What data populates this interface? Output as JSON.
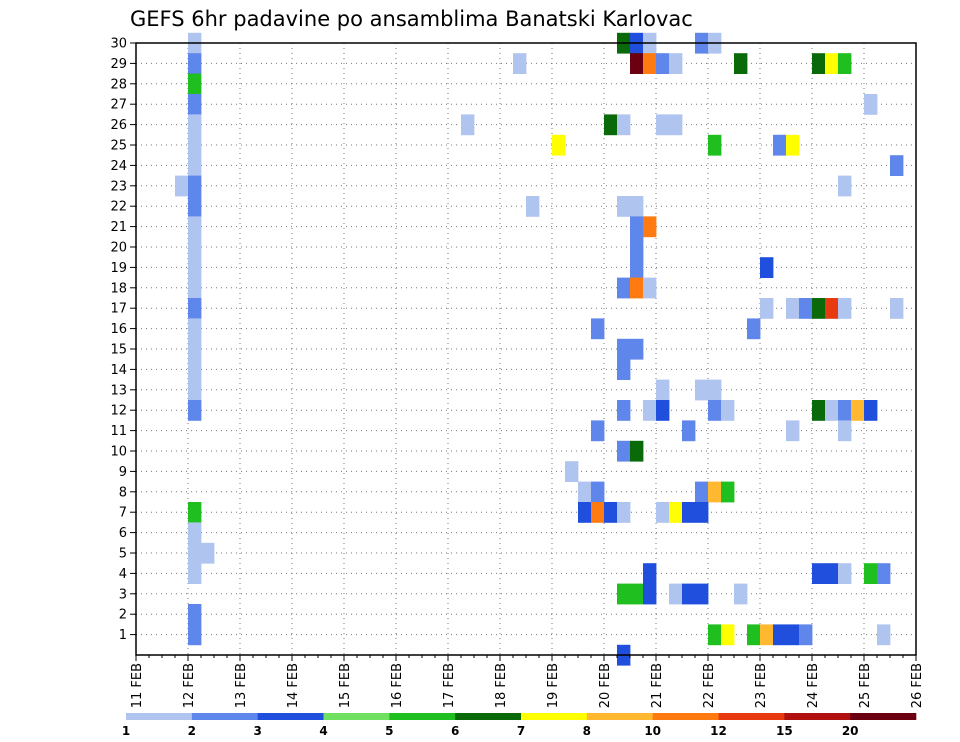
{
  "chart_data": {
    "type": "heatmap",
    "title": "GEFS 6hr padavine po ansamblima Banatski Karlovac",
    "xlabel": "",
    "ylabel": "",
    "x_ticks": [
      "11 FEB",
      "12 FEB",
      "13 FEB",
      "14 FEB",
      "15 FEB",
      "16 FEB",
      "17 FEB",
      "18 FEB",
      "19 FEB",
      "20 FEB",
      "21 FEB",
      "22 FEB",
      "23 FEB",
      "24 FEB",
      "25 FEB",
      "26 FEB"
    ],
    "x_range": [
      0,
      15
    ],
    "y_ticks": [
      "1",
      "2",
      "3",
      "4",
      "5",
      "6",
      "7",
      "8",
      "9",
      "10",
      "11",
      "12",
      "13",
      "14",
      "15",
      "16",
      "17",
      "18",
      "19",
      "20",
      "21",
      "22",
      "23",
      "24",
      "25",
      "26",
      "27",
      "28",
      "29",
      "30"
    ],
    "y_range": [
      0,
      30
    ],
    "x_step_days": 0.25,
    "grid": true,
    "legend_position": "bottom",
    "legend": {
      "labels": [
        "1",
        "2",
        "3",
        "4",
        "5",
        "6",
        "7",
        "8",
        "10",
        "12",
        "15",
        "20"
      ],
      "colors": [
        "#b0c4f0",
        "#5f86ea",
        "#1f4fdc",
        "#6fe060",
        "#1fbf1f",
        "#0a6a0a",
        "#ffff00",
        "#ffb830",
        "#ff7a10",
        "#e83a10",
        "#b01010",
        "#6a0010"
      ]
    },
    "cells": [
      {
        "member": 30,
        "day": 1.0,
        "v": 1
      },
      {
        "member": 29,
        "day": 1.0,
        "v": 2
      },
      {
        "member": 28,
        "day": 1.0,
        "v": 5
      },
      {
        "member": 27,
        "day": 1.0,
        "v": 2
      },
      {
        "member": 26,
        "day": 1.0,
        "v": 1
      },
      {
        "member": 25,
        "day": 1.0,
        "v": 1
      },
      {
        "member": 24,
        "day": 1.0,
        "v": 1
      },
      {
        "member": 23,
        "day": 0.75,
        "v": 1
      },
      {
        "member": 23,
        "day": 1.0,
        "v": 2
      },
      {
        "member": 22,
        "day": 1.0,
        "v": 2
      },
      {
        "member": 21,
        "day": 1.0,
        "v": 1
      },
      {
        "member": 20,
        "day": 1.0,
        "v": 1
      },
      {
        "member": 19,
        "day": 1.0,
        "v": 1
      },
      {
        "member": 18,
        "day": 1.0,
        "v": 1
      },
      {
        "member": 17,
        "day": 1.0,
        "v": 2
      },
      {
        "member": 16,
        "day": 1.0,
        "v": 1
      },
      {
        "member": 15,
        "day": 1.0,
        "v": 1
      },
      {
        "member": 14,
        "day": 1.0,
        "v": 1
      },
      {
        "member": 13,
        "day": 1.0,
        "v": 1
      },
      {
        "member": 12,
        "day": 1.0,
        "v": 2
      },
      {
        "member": 7,
        "day": 1.0,
        "v": 5
      },
      {
        "member": 6,
        "day": 1.0,
        "v": 1
      },
      {
        "member": 5,
        "day": 1.0,
        "v": 1
      },
      {
        "member": 5,
        "day": 1.25,
        "v": 1
      },
      {
        "member": 4,
        "day": 1.0,
        "v": 1
      },
      {
        "member": 2,
        "day": 1.0,
        "v": 2
      },
      {
        "member": 1,
        "day": 1.0,
        "v": 2
      },
      {
        "member": 30,
        "day": 9.25,
        "v": 6
      },
      {
        "member": 30,
        "day": 9.5,
        "v": 3
      },
      {
        "member": 30,
        "day": 9.75,
        "v": 1
      },
      {
        "member": 30,
        "day": 10.75,
        "v": 2
      },
      {
        "member": 30,
        "day": 11.0,
        "v": 1
      },
      {
        "member": 29,
        "day": 7.25,
        "v": 1
      },
      {
        "member": 29,
        "day": 9.5,
        "v": 20
      },
      {
        "member": 29,
        "day": 9.75,
        "v": 10
      },
      {
        "member": 29,
        "day": 10.0,
        "v": 2
      },
      {
        "member": 29,
        "day": 10.25,
        "v": 1
      },
      {
        "member": 29,
        "day": 11.5,
        "v": 6
      },
      {
        "member": 29,
        "day": 13.0,
        "v": 6
      },
      {
        "member": 29,
        "day": 13.25,
        "v": 7
      },
      {
        "member": 29,
        "day": 13.5,
        "v": 5
      },
      {
        "member": 27,
        "day": 14.0,
        "v": 1
      },
      {
        "member": 26,
        "day": 6.25,
        "v": 1
      },
      {
        "member": 26,
        "day": 9.0,
        "v": 6
      },
      {
        "member": 26,
        "day": 9.25,
        "v": 1
      },
      {
        "member": 26,
        "day": 10.0,
        "v": 1
      },
      {
        "member": 26,
        "day": 10.25,
        "v": 1
      },
      {
        "member": 25,
        "day": 8.0,
        "v": 7
      },
      {
        "member": 25,
        "day": 11.0,
        "v": 5
      },
      {
        "member": 25,
        "day": 12.25,
        "v": 2
      },
      {
        "member": 25,
        "day": 12.5,
        "v": 7
      },
      {
        "member": 24,
        "day": 14.5,
        "v": 2
      },
      {
        "member": 23,
        "day": 13.5,
        "v": 1
      },
      {
        "member": 22,
        "day": 7.5,
        "v": 1
      },
      {
        "member": 22,
        "day": 9.25,
        "v": 1
      },
      {
        "member": 22,
        "day": 9.5,
        "v": 1
      },
      {
        "member": 21,
        "day": 9.5,
        "v": 2
      },
      {
        "member": 21,
        "day": 9.75,
        "v": 10
      },
      {
        "member": 20,
        "day": 9.5,
        "v": 2
      },
      {
        "member": 19,
        "day": 9.5,
        "v": 2
      },
      {
        "member": 19,
        "day": 12.0,
        "v": 3
      },
      {
        "member": 18,
        "day": 9.25,
        "v": 2
      },
      {
        "member": 18,
        "day": 9.5,
        "v": 10
      },
      {
        "member": 18,
        "day": 9.75,
        "v": 1
      },
      {
        "member": 17,
        "day": 12.0,
        "v": 1
      },
      {
        "member": 17,
        "day": 12.5,
        "v": 1
      },
      {
        "member": 17,
        "day": 12.75,
        "v": 2
      },
      {
        "member": 17,
        "day": 13.0,
        "v": 6
      },
      {
        "member": 17,
        "day": 13.25,
        "v": 12
      },
      {
        "member": 17,
        "day": 13.5,
        "v": 1
      },
      {
        "member": 17,
        "day": 14.5,
        "v": 1
      },
      {
        "member": 16,
        "day": 8.75,
        "v": 2
      },
      {
        "member": 16,
        "day": 11.75,
        "v": 2
      },
      {
        "member": 15,
        "day": 9.25,
        "v": 2
      },
      {
        "member": 15,
        "day": 9.5,
        "v": 2
      },
      {
        "member": 14,
        "day": 9.25,
        "v": 2
      },
      {
        "member": 13,
        "day": 10.0,
        "v": 1
      },
      {
        "member": 13,
        "day": 10.75,
        "v": 1
      },
      {
        "member": 13,
        "day": 11.0,
        "v": 1
      },
      {
        "member": 12,
        "day": 9.25,
        "v": 2
      },
      {
        "member": 12,
        "day": 9.75,
        "v": 1
      },
      {
        "member": 12,
        "day": 10.0,
        "v": 3
      },
      {
        "member": 12,
        "day": 11.0,
        "v": 2
      },
      {
        "member": 12,
        "day": 11.25,
        "v": 1
      },
      {
        "member": 12,
        "day": 13.0,
        "v": 6
      },
      {
        "member": 12,
        "day": 13.25,
        "v": 1
      },
      {
        "member": 12,
        "day": 13.5,
        "v": 2
      },
      {
        "member": 12,
        "day": 13.75,
        "v": 8
      },
      {
        "member": 12,
        "day": 14.0,
        "v": 3
      },
      {
        "member": 11,
        "day": 8.75,
        "v": 2
      },
      {
        "member": 11,
        "day": 10.5,
        "v": 2
      },
      {
        "member": 11,
        "day": 12.5,
        "v": 1
      },
      {
        "member": 11,
        "day": 13.5,
        "v": 1
      },
      {
        "member": 10,
        "day": 9.25,
        "v": 2
      },
      {
        "member": 10,
        "day": 9.5,
        "v": 6
      },
      {
        "member": 9,
        "day": 8.25,
        "v": 1
      },
      {
        "member": 8,
        "day": 8.5,
        "v": 1
      },
      {
        "member": 8,
        "day": 8.75,
        "v": 2
      },
      {
        "member": 8,
        "day": 10.75,
        "v": 2
      },
      {
        "member": 8,
        "day": 11.0,
        "v": 8
      },
      {
        "member": 8,
        "day": 11.25,
        "v": 5
      },
      {
        "member": 7,
        "day": 8.5,
        "v": 3
      },
      {
        "member": 7,
        "day": 8.75,
        "v": 10
      },
      {
        "member": 7,
        "day": 9.0,
        "v": 3
      },
      {
        "member": 7,
        "day": 9.25,
        "v": 1
      },
      {
        "member": 7,
        "day": 10.0,
        "v": 1
      },
      {
        "member": 7,
        "day": 10.25,
        "v": 7
      },
      {
        "member": 7,
        "day": 10.5,
        "v": 3
      },
      {
        "member": 7,
        "day": 10.75,
        "v": 3
      },
      {
        "member": 4,
        "day": 9.75,
        "v": 3
      },
      {
        "member": 4,
        "day": 13.0,
        "v": 3
      },
      {
        "member": 4,
        "day": 13.25,
        "v": 3
      },
      {
        "member": 4,
        "day": 13.5,
        "v": 1
      },
      {
        "member": 4,
        "day": 14.0,
        "v": 5
      },
      {
        "member": 4,
        "day": 14.25,
        "v": 2
      },
      {
        "member": 3,
        "day": 9.25,
        "v": 5
      },
      {
        "member": 3,
        "day": 9.5,
        "v": 5
      },
      {
        "member": 3,
        "day": 9.75,
        "v": 3
      },
      {
        "member": 3,
        "day": 10.25,
        "v": 1
      },
      {
        "member": 3,
        "day": 10.5,
        "v": 3
      },
      {
        "member": 3,
        "day": 10.75,
        "v": 3
      },
      {
        "member": 3,
        "day": 11.5,
        "v": 1
      },
      {
        "member": 1,
        "day": 11.0,
        "v": 5
      },
      {
        "member": 1,
        "day": 11.25,
        "v": 7
      },
      {
        "member": 1,
        "day": 11.75,
        "v": 5
      },
      {
        "member": 1,
        "day": 12.0,
        "v": 8
      },
      {
        "member": 1,
        "day": 12.25,
        "v": 3
      },
      {
        "member": 1,
        "day": 12.5,
        "v": 3
      },
      {
        "member": 1,
        "day": 12.75,
        "v": 2
      },
      {
        "member": 1,
        "day": 14.25,
        "v": 1
      },
      {
        "member": 0,
        "day": 9.25,
        "v": 3
      }
    ]
  }
}
